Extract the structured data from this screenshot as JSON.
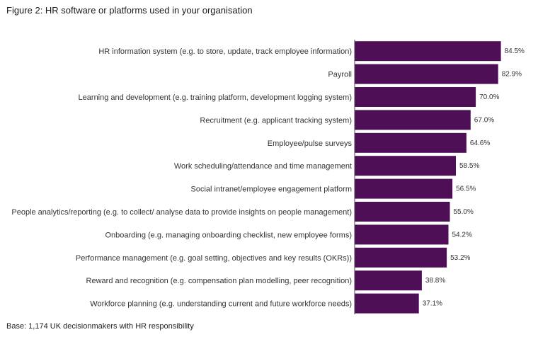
{
  "figure": {
    "title": "Figure 2: HR software or platforms used in your organisation",
    "footnote": "Base: 1,174 UK decisionmakers with HR responsibility"
  },
  "colors": {
    "bar": "#4f0f57",
    "axis": "#444444"
  },
  "chart_data": {
    "type": "bar",
    "orientation": "horizontal",
    "categories": [
      "HR information system (e.g. to store, update, track employee information)",
      "Payroll",
      "Learning and development (e.g. training platform, development logging system)",
      "Recruitment (e.g. applicant tracking system)",
      "Employee/pulse surveys",
      "Work scheduling/attendance and time management",
      "Social intranet/employee engagement platform",
      "People analytics/reporting (e.g. to collect/ analyse data to provide insights on people management)",
      "Onboarding (e.g. managing onboarding checklist, new employee forms)",
      "Performance management (e.g. goal setting, objectives and key results (OKRs))",
      "Reward and recognition (e.g. compensation plan modelling, peer recognition)",
      "Workforce planning (e.g. understanding current and future workforce needs)"
    ],
    "values": [
      84.5,
      82.9,
      70.0,
      67.0,
      64.6,
      58.5,
      56.5,
      55.0,
      54.2,
      53.2,
      38.8,
      37.1
    ],
    "value_labels": [
      "84.5%",
      "82.9%",
      "70.0%",
      "67.0%",
      "64.6%",
      "58.5%",
      "56.5%",
      "55.0%",
      "54.2%",
      "53.2%",
      "38.8%",
      "37.1%"
    ],
    "title": "Figure 2: HR software or platforms used in your organisation",
    "xlabel": "",
    "ylabel": "",
    "xlim": [
      0,
      100
    ],
    "grid": false,
    "legend": "none"
  }
}
